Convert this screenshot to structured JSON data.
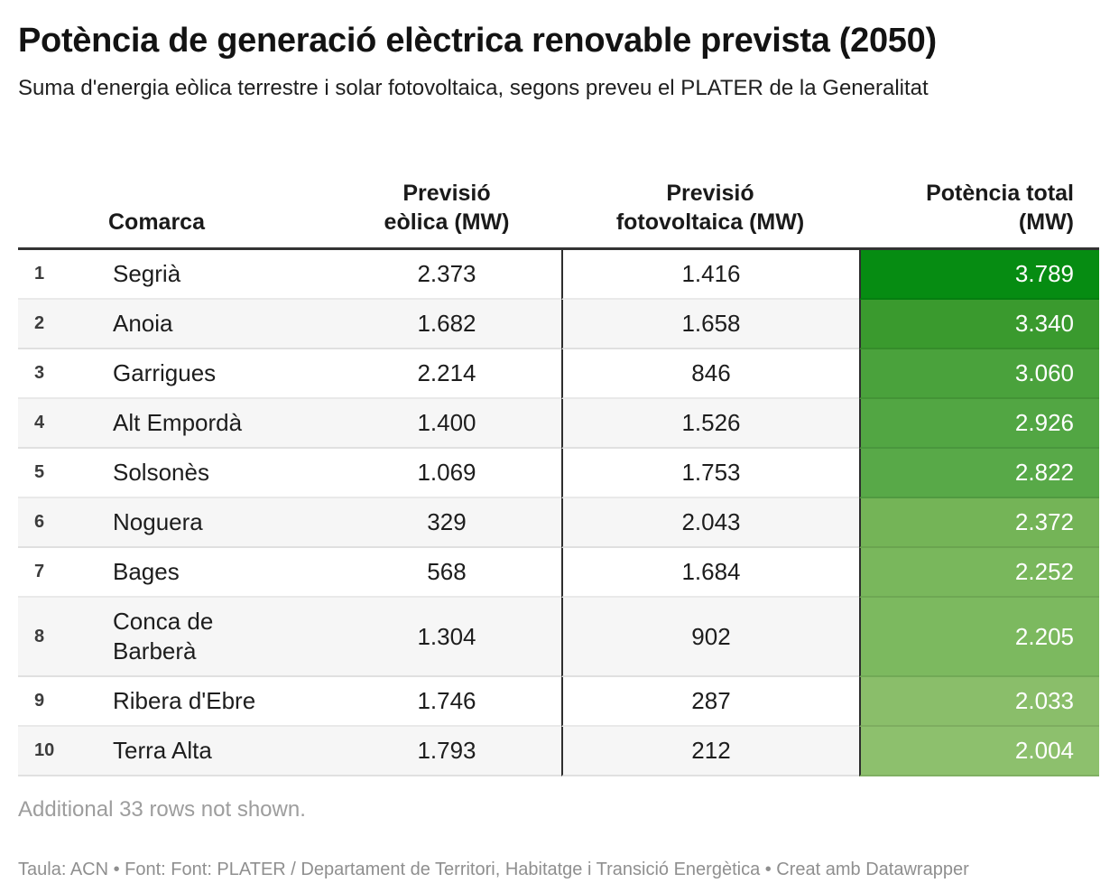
{
  "header": {
    "title": "Potència de generació elèctrica renovable prevista (2050)",
    "subtitle": "Suma d'energia eòlica terrestre i solar fotovoltaica, segons preveu el PLATER de la Generalitat"
  },
  "table": {
    "headers": {
      "rank": "",
      "comarca": "Comarca",
      "eolica": "Previsió\neòlica (MW)",
      "fotovoltaica": "Previsió\nfotovoltaica (MW)",
      "total": "Potència total\n(MW)"
    }
  },
  "chart_data": {
    "type": "table",
    "title": "Potència de generació elèctrica renovable prevista (2050)",
    "subtitle": "Suma d'energia eòlica terrestre i solar fotovoltaica, segons preveu el PLATER de la Generalitat",
    "columns": [
      "#",
      "Comarca",
      "Previsió eòlica (MW)",
      "Previsió fotovoltaica (MW)",
      "Potència total (MW)"
    ],
    "heatmap_column": "Potència total (MW)",
    "color_scale": {
      "min_value": 2004,
      "max_value": 3789,
      "min_color": "#8dc06d",
      "max_color": "#068c12",
      "text_color": "#ffffff"
    },
    "rows": [
      {
        "rank": "1",
        "comarca": "Segrià",
        "comarca_display": "Segrià",
        "eolica": 2373,
        "eolica_display": "2.373",
        "fotovoltaica": 1416,
        "fotovoltaica_display": "1.416",
        "total": 3789,
        "total_display": "3.789",
        "total_color": "#068c12"
      },
      {
        "rank": "2",
        "comarca": "Anoia",
        "comarca_display": "Anoia",
        "eolica": 1682,
        "eolica_display": "1.682",
        "fotovoltaica": 1658,
        "fotovoltaica_display": "1.658",
        "total": 3340,
        "total_display": "3.340",
        "total_color": "#3a9a2e"
      },
      {
        "rank": "3",
        "comarca": "Garrigues",
        "comarca_display": "Garrigues",
        "eolica": 2214,
        "eolica_display": "2.214",
        "fotovoltaica": 846,
        "fotovoltaica_display": "846",
        "total": 3060,
        "total_display": "3.060",
        "total_color": "#4aa23c"
      },
      {
        "rank": "4",
        "comarca": "Alt Empordà",
        "comarca_display": "Alt Empordà",
        "eolica": 1400,
        "eolica_display": "1.400",
        "fotovoltaica": 1526,
        "fotovoltaica_display": "1.526",
        "total": 2926,
        "total_display": "2.926",
        "total_color": "#52a643"
      },
      {
        "rank": "5",
        "comarca": "Solsonès",
        "comarca_display": "Solsonès",
        "eolica": 1069,
        "eolica_display": "1.069",
        "fotovoltaica": 1753,
        "fotovoltaica_display": "1.753",
        "total": 2822,
        "total_display": "2.822",
        "total_color": "#58a948"
      },
      {
        "rank": "6",
        "comarca": "Noguera",
        "comarca_display": "Noguera",
        "eolica": 329,
        "eolica_display": "329",
        "fotovoltaica": 2043,
        "fotovoltaica_display": "2.043",
        "total": 2372,
        "total_display": "2.372",
        "total_color": "#74b457"
      },
      {
        "rank": "7",
        "comarca": "Bages",
        "comarca_display": "Bages",
        "eolica": 568,
        "eolica_display": "568",
        "fotovoltaica": 1684,
        "fotovoltaica_display": "1.684",
        "total": 2252,
        "total_display": "2.252",
        "total_color": "#79b75c"
      },
      {
        "rank": "8",
        "comarca": "Conca de Barberà",
        "comarca_display": "Conca de\nBarberà",
        "eolica": 1304,
        "eolica_display": "1.304",
        "fotovoltaica": 902,
        "fotovoltaica_display": "902",
        "total": 2205,
        "total_display": "2.205",
        "total_color": "#7cb95f"
      },
      {
        "rank": "9",
        "comarca": "Ribera d'Ebre",
        "comarca_display": "Ribera d'Ebre",
        "eolica": 1746,
        "eolica_display": "1.746",
        "fotovoltaica": 287,
        "fotovoltaica_display": "287",
        "total": 2033,
        "total_display": "2.033",
        "total_color": "#8abe6a"
      },
      {
        "rank": "10",
        "comarca": "Terra Alta",
        "comarca_display": "Terra Alta",
        "eolica": 1793,
        "eolica_display": "1.793",
        "fotovoltaica": 212,
        "fotovoltaica_display": "212",
        "total": 2004,
        "total_display": "2.004",
        "total_color": "#8dc06d"
      }
    ]
  },
  "footer": {
    "note": "Additional 33 rows not shown.",
    "attribution": "Taula: ACN • Font: Font: PLATER / Departament de Territori, Habitatge i Transició Energètica • Creat amb Datawrapper"
  },
  "colors": {
    "background": "#ffffff",
    "title_text": "#131313",
    "zebra_row": "#f6f6f6",
    "header_rule": "#333333",
    "column_divider": "#2e2e2e",
    "note_text": "#9d9d9d",
    "attribution_text": "#8f8f8f",
    "heatmap_dark": "#068c12",
    "heatmap_light": "#8dc06d"
  }
}
